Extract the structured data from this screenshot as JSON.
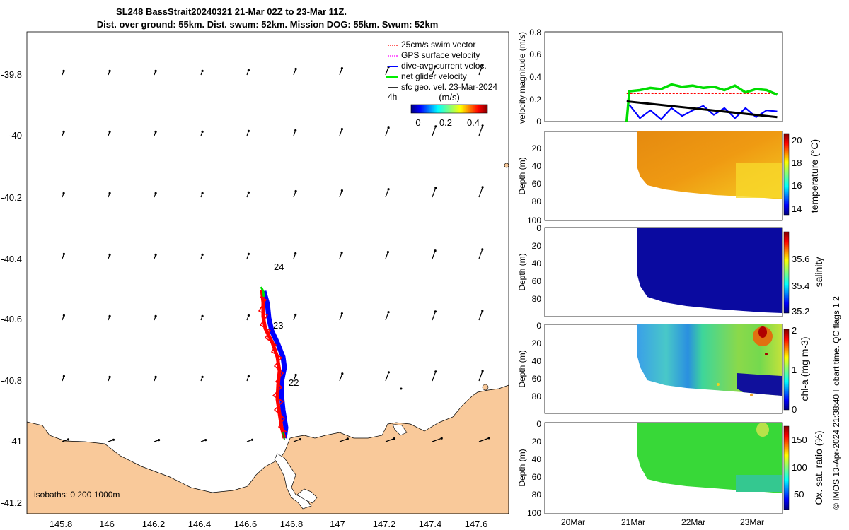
{
  "chart_data": [
    {
      "type": "map",
      "name": "trajectory-map",
      "title": "SL248 BassStrait20240321 21-Mar 02Z to 23-Mar 11Z.",
      "subtitle": "Dist. over ground: 55km. Dist. swum: 52km. Mission DOG: 55km. Swum: 52km",
      "x_ticks": [
        "145.8",
        "146",
        "146.2",
        "146.4",
        "146.6",
        "146.8",
        "147",
        "147.2",
        "147.4",
        "147.6"
      ],
      "y_ticks": [
        "-39.8",
        "-40",
        "-40.2",
        "-40.4",
        "-40.6",
        "-40.8",
        "-41",
        "-41.2"
      ],
      "xlim": [
        145.66,
        147.76
      ],
      "ylim": [
        -41.25,
        -39.67
      ],
      "legend": [
        {
          "label": "25cm/s swim vector",
          "color": "#ff0000"
        },
        {
          "label": "GPS surface velocity",
          "color": "#ff00ff"
        },
        {
          "label": "dive-avg current veloc.",
          "color": "#0000ff"
        },
        {
          "label": "net glider velocity",
          "color": "#00ee00"
        },
        {
          "label": "sfc geo. vel. 23-Mar-2024",
          "color": "#000000"
        }
      ],
      "legend_note": "4h",
      "colorbar": {
        "label": "(m/s)",
        "ticks": [
          "0",
          "0.2",
          "0.4"
        ],
        "range": [
          -0.05,
          0.5
        ]
      },
      "isobaths_label": "isobaths: 0   200  1000m",
      "day_labels": [
        {
          "text": "24",
          "lon": 146.75,
          "lat": -40.43
        },
        {
          "text": "23",
          "lon": 146.75,
          "lat": -40.62
        },
        {
          "text": "22",
          "lon": 146.82,
          "lat": -40.81
        }
      ],
      "track": [
        [
          146.69,
          -41.0
        ],
        [
          146.72,
          -40.95
        ],
        [
          146.7,
          -40.9
        ],
        [
          146.71,
          -40.84
        ],
        [
          146.73,
          -40.78
        ],
        [
          146.72,
          -40.72
        ],
        [
          146.69,
          -40.66
        ],
        [
          146.7,
          -40.6
        ],
        [
          146.67,
          -40.55
        ],
        [
          146.66,
          -40.5
        ]
      ]
    },
    {
      "type": "line",
      "name": "velocity-magnitude",
      "ylabel": "velocity magnitude (m/s)",
      "ylim": [
        0,
        0.8
      ],
      "y_ticks": [
        "0",
        "0.2",
        "0.4",
        "0.6",
        "0.8"
      ],
      "x_day_range": [
        19.5,
        24.0
      ],
      "series": [
        {
          "name": "25cm/s swim vector",
          "color": "#ff0000",
          "x": [
            21.05,
            23.9
          ],
          "values": [
            0.25,
            0.25
          ]
        },
        {
          "name": "net glider velocity",
          "color": "#00dd00",
          "x": [
            21.05,
            21.1,
            21.3,
            21.5,
            21.7,
            21.9,
            22.1,
            22.3,
            22.5,
            22.7,
            22.9,
            23.1,
            23.3,
            23.5,
            23.7,
            23.9
          ],
          "values": [
            0.0,
            0.27,
            0.28,
            0.3,
            0.29,
            0.33,
            0.31,
            0.32,
            0.3,
            0.31,
            0.28,
            0.32,
            0.26,
            0.29,
            0.28,
            0.24
          ]
        },
        {
          "name": "dive-avg current veloc.",
          "color": "#0000ff",
          "x": [
            21.1,
            21.3,
            21.5,
            21.7,
            21.9,
            22.1,
            22.3,
            22.5,
            22.7,
            22.9,
            23.1,
            23.3,
            23.5,
            23.7,
            23.9
          ],
          "values": [
            0.15,
            0.03,
            0.1,
            0.02,
            0.12,
            0.05,
            0.1,
            0.14,
            0.06,
            0.12,
            0.03,
            0.12,
            0.04,
            0.1,
            0.09
          ]
        },
        {
          "name": "sfc geo. vel.",
          "color": "#000000",
          "x": [
            21.05,
            23.9
          ],
          "values": [
            0.18,
            0.04
          ]
        }
      ]
    },
    {
      "type": "heatmap",
      "name": "temperature-section",
      "ylabel": "Depth (m)",
      "clabel": "temperature (°C)",
      "y_ticks": [
        "20",
        "40",
        "60",
        "80",
        "100"
      ],
      "c_ticks": [
        "14",
        "16",
        "18",
        "20"
      ],
      "crange": [
        13.5,
        20.5
      ],
      "cmap": "jet",
      "values_note": "warm ~19.5 near surface left, cooling to ~17 at depth on right"
    },
    {
      "type": "heatmap",
      "name": "salinity-section",
      "ylabel": "Depth (m)",
      "clabel": "salinity",
      "y_ticks": [
        "0",
        "20",
        "40",
        "60",
        "80"
      ],
      "c_ticks": [
        "35.2",
        "35.4",
        "35.6"
      ],
      "crange": [
        35.18,
        35.78
      ],
      "cmap": "jet",
      "values_note": "uniform ~35.2"
    },
    {
      "type": "heatmap",
      "name": "chla-section",
      "ylabel": "Depth (m)",
      "clabel": "chl-a (mg m-3)",
      "y_ticks": [
        "0",
        "20",
        "40",
        "60",
        "80"
      ],
      "c_ticks": [
        "0",
        "1",
        "2"
      ],
      "crange": [
        0,
        2
      ],
      "cmap": "jet",
      "values_note": "mostly ~0.8, high near 23Mar surface, low deep right"
    },
    {
      "type": "heatmap",
      "name": "oxygen-section",
      "ylabel": "Depth (m)",
      "clabel": "Ox. sat. ratio (%)",
      "y_ticks": [
        "0",
        "20",
        "40",
        "60",
        "80",
        "100"
      ],
      "c_ticks": [
        "50",
        "100",
        "150"
      ],
      "crange": [
        20,
        170
      ],
      "cmap": "jet",
      "x_ticks": [
        "20Mar",
        "21Mar",
        "22Mar",
        "23Mar"
      ],
      "values_note": "~100-110% throughout"
    }
  ],
  "footer_note": "© IMOS 13-Apr-2024 21:38:40 Hobart time. QC flags 1  2"
}
